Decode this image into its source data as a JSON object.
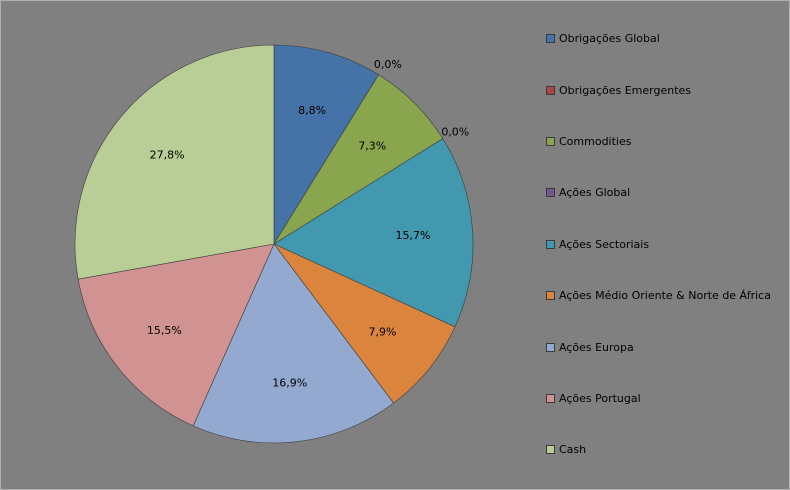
{
  "chart_data": {
    "type": "pie",
    "categories": [
      "Obrigações Global",
      "Obrigações Emergentes",
      "Commodities",
      "Ações Global",
      "Ações Sectoriais",
      "Ações Médio Oriente & Norte de África",
      "Ações Europa",
      "Ações Portugal",
      "Cash"
    ],
    "values": [
      8.8,
      0.0,
      7.3,
      0.0,
      15.7,
      7.9,
      16.9,
      15.5,
      27.8
    ],
    "data_labels": [
      "8,8%",
      "0,0%",
      "7,3%",
      "0,0%",
      "15,7%",
      "7,9%",
      "16,9%",
      "15,5%",
      "27,8%"
    ],
    "colors": [
      "#4572a7",
      "#aa4643",
      "#89a54e",
      "#71588f",
      "#4198af",
      "#db843d",
      "#93a9cf",
      "#d19392",
      "#b9cd96"
    ],
    "legend_position": "right",
    "start_angle": "12 o'clock, clockwise",
    "background": "#808080"
  }
}
